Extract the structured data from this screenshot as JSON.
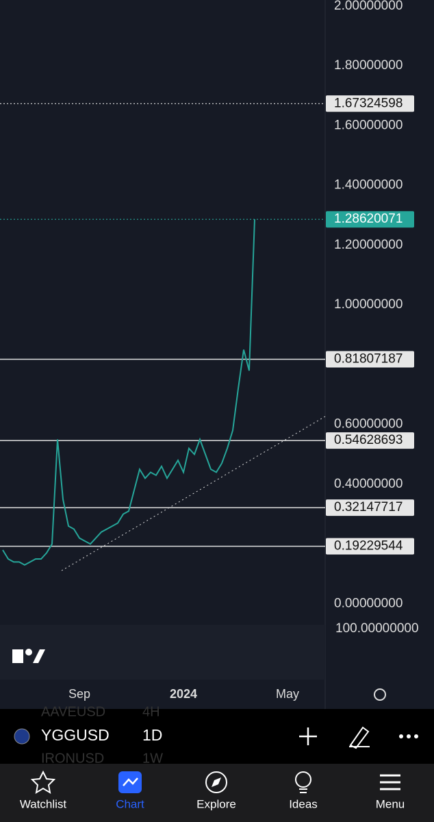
{
  "chart_data": {
    "type": "line",
    "symbol": "YGGUSD",
    "interval": "1D",
    "categories": [
      null,
      null,
      null,
      null,
      null,
      null,
      null,
      null,
      null,
      null,
      null,
      null,
      null,
      null,
      "Sep",
      null,
      null,
      null,
      null,
      null,
      null,
      null,
      null,
      null,
      null,
      null,
      null,
      null,
      null,
      null,
      null,
      null,
      null,
      "2024",
      null,
      null,
      null,
      null,
      null,
      null,
      null,
      null,
      null,
      null,
      null,
      null,
      null,
      null,
      null,
      null,
      null,
      null,
      "May",
      null,
      null,
      null,
      null,
      null,
      null,
      null
    ],
    "values": [
      0.18,
      0.15,
      0.14,
      0.14,
      0.13,
      0.14,
      0.15,
      0.15,
      0.17,
      0.2,
      0.55,
      0.35,
      0.26,
      0.25,
      0.22,
      0.21,
      0.2,
      0.22,
      0.24,
      0.25,
      0.26,
      0.27,
      0.3,
      0.31,
      0.38,
      0.45,
      0.42,
      0.44,
      0.43,
      0.46,
      0.42,
      0.45,
      0.48,
      0.44,
      0.52,
      0.5,
      0.55,
      0.5,
      0.45,
      0.44,
      0.47,
      0.52,
      0.58,
      0.72,
      0.85,
      0.78,
      1.28620071,
      null,
      null,
      null,
      null,
      null,
      null,
      null,
      null,
      null,
      null,
      null,
      null,
      null
    ],
    "color": "#26a69a",
    "ylim": [
      -0.07,
      2.02
    ],
    "yticks": [
      {
        "value": 0,
        "label": "0.00000000"
      },
      {
        "value": 0.4,
        "label": "0.40000000"
      },
      {
        "value": 0.6,
        "label": "0.60000000"
      },
      {
        "value": 1,
        "label": "1.00000000"
      },
      {
        "value": 1.2,
        "label": "1.20000000"
      },
      {
        "value": 1.4,
        "label": "1.40000000"
      },
      {
        "value": 1.6,
        "label": "1.60000000"
      },
      {
        "value": 1.8,
        "label": "1.80000000"
      },
      {
        "value": 2,
        "label": "2.00000000"
      }
    ],
    "levels": [
      {
        "value": 1.67324598,
        "style": "dotted",
        "color": "#e0e0e0"
      },
      {
        "value": 1.28620071,
        "style": "dotted",
        "color": "#26a69a"
      },
      {
        "value": 0.81807187,
        "style": "solid",
        "color": "#e0e0e0"
      },
      {
        "value": 0.54628693,
        "style": "solid",
        "color": "#e0e0e0"
      },
      {
        "value": 0.32147717,
        "style": "solid",
        "color": "#e0e0e0"
      },
      {
        "value": 0.19229544,
        "style": "solid",
        "color": "#e0e0e0"
      }
    ],
    "rsi_label": "100.00000000"
  },
  "watchlist_peek": [
    {
      "symbol": "AAVEUSD",
      "interval": "4H"
    },
    {
      "symbol": "IRONUSD",
      "interval": "1W"
    }
  ],
  "tabs": [
    "Watchlist",
    "Chart",
    "Explore",
    "Ideas",
    "Menu"
  ]
}
